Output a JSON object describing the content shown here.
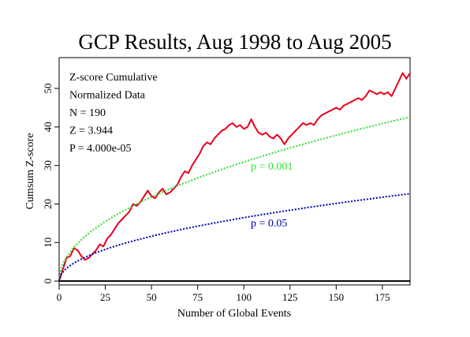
{
  "chart_data": {
    "type": "line",
    "title": "GCP Results, Aug 1998 to Aug 2005",
    "xlabel": "Number of Global Events",
    "ylabel": "Cumsum Z-score",
    "xlim": [
      0,
      190
    ],
    "ylim": [
      -1,
      58
    ],
    "xticks": [
      "0",
      "25",
      "50",
      "75",
      "100",
      "125",
      "150",
      "175"
    ],
    "yticks": [
      "0",
      "10",
      "20",
      "30",
      "40",
      "50"
    ],
    "grid": false,
    "colors": {
      "observed": "#e8001c",
      "p001": "#33dd33",
      "p05": "#0000aa",
      "baseline": "#000000"
    },
    "annotation_lines": [
      "Z-score Cumulative",
      "Normalized Data",
      "N = 190",
      "Z = 3.944",
      "P = 4.000e-05"
    ],
    "curve_labels": {
      "p001": "p = 0.001",
      "p05": "p = 0.05"
    },
    "series": [
      {
        "key": "observed",
        "points": [
          [
            0,
            0
          ],
          [
            2,
            3
          ],
          [
            4,
            6
          ],
          [
            6,
            6.5
          ],
          [
            8,
            8.5
          ],
          [
            10,
            8
          ],
          [
            12,
            6.5
          ],
          [
            14,
            5.5
          ],
          [
            16,
            6
          ],
          [
            18,
            7
          ],
          [
            20,
            8
          ],
          [
            22,
            9.5
          ],
          [
            24,
            9
          ],
          [
            26,
            11
          ],
          [
            28,
            12
          ],
          [
            30,
            13.5
          ],
          [
            32,
            15
          ],
          [
            34,
            16
          ],
          [
            36,
            17
          ],
          [
            38,
            18
          ],
          [
            40,
            20
          ],
          [
            42,
            19.5
          ],
          [
            44,
            20.5
          ],
          [
            46,
            22
          ],
          [
            48,
            23.5
          ],
          [
            50,
            22
          ],
          [
            52,
            21.5
          ],
          [
            54,
            23
          ],
          [
            56,
            24
          ],
          [
            58,
            22.5
          ],
          [
            60,
            23
          ],
          [
            62,
            24
          ],
          [
            64,
            25
          ],
          [
            66,
            27
          ],
          [
            68,
            28.5
          ],
          [
            70,
            28
          ],
          [
            72,
            30
          ],
          [
            74,
            31.5
          ],
          [
            76,
            33
          ],
          [
            78,
            35
          ],
          [
            80,
            36
          ],
          [
            82,
            35.5
          ],
          [
            84,
            37
          ],
          [
            86,
            38
          ],
          [
            88,
            39
          ],
          [
            90,
            39.5
          ],
          [
            92,
            40.5
          ],
          [
            94,
            41
          ],
          [
            96,
            40
          ],
          [
            98,
            40.5
          ],
          [
            100,
            39.5
          ],
          [
            102,
            40
          ],
          [
            104,
            42
          ],
          [
            106,
            40
          ],
          [
            108,
            38.5
          ],
          [
            110,
            38
          ],
          [
            112,
            38.5
          ],
          [
            114,
            37.5
          ],
          [
            116,
            37
          ],
          [
            118,
            38
          ],
          [
            120,
            37
          ],
          [
            122,
            35.5
          ],
          [
            124,
            37
          ],
          [
            126,
            38
          ],
          [
            128,
            39
          ],
          [
            130,
            40
          ],
          [
            132,
            41
          ],
          [
            134,
            40.5
          ],
          [
            136,
            41
          ],
          [
            138,
            40.5
          ],
          [
            140,
            42
          ],
          [
            142,
            43
          ],
          [
            144,
            43.5
          ],
          [
            146,
            44
          ],
          [
            148,
            44.5
          ],
          [
            150,
            45
          ],
          [
            152,
            44.5
          ],
          [
            154,
            45.5
          ],
          [
            156,
            46
          ],
          [
            158,
            46.5
          ],
          [
            160,
            47
          ],
          [
            162,
            47.5
          ],
          [
            164,
            47
          ],
          [
            166,
            48
          ],
          [
            168,
            49.5
          ],
          [
            170,
            49
          ],
          [
            172,
            48.5
          ],
          [
            174,
            49
          ],
          [
            176,
            48.5
          ],
          [
            178,
            49
          ],
          [
            180,
            48
          ],
          [
            182,
            50
          ],
          [
            184,
            52
          ],
          [
            186,
            54
          ],
          [
            188,
            52.5
          ],
          [
            190,
            54
          ]
        ]
      },
      {
        "key": "p001",
        "formula": "3.09*sqrt(n)"
      },
      {
        "key": "p05",
        "formula": "1.645*sqrt(n)"
      }
    ]
  }
}
